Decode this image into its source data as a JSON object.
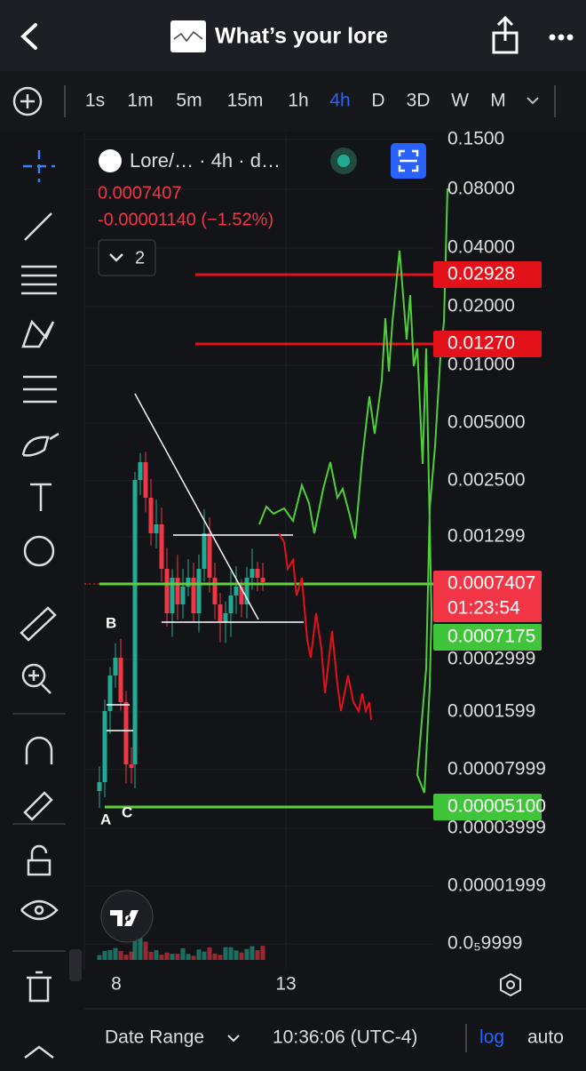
{
  "header": {
    "title": "What’s your lore"
  },
  "timeframes": [
    "1s",
    "1m",
    "5m",
    "15m",
    "1h",
    "4h",
    "D",
    "3D",
    "W",
    "M"
  ],
  "active_timeframe": "4h",
  "legend": {
    "symbol": "Lore/… · 4h · d…",
    "price": "0.0007407",
    "change": "-0.00001140 (−1.52%)",
    "collapsed_count": "2"
  },
  "price_axis": [
    "0.1500",
    "0.08000",
    "0.04000",
    "0.02000",
    "0.01000",
    "0.005000",
    "0.002500",
    "0.001299",
    "0.0002999",
    "0.0001599",
    "0.00007999",
    "0.00003999",
    "0.00001999",
    "0.0₅9999"
  ],
  "price_tags": [
    {
      "label": "0.02928",
      "color": "red"
    },
    {
      "label": "0.01270",
      "color": "red"
    },
    {
      "label": "0.0007407",
      "sub": "01:23:54",
      "color": "red"
    },
    {
      "label": "0.0007175",
      "color": "green"
    },
    {
      "label": "0.00005100",
      "color": "green"
    }
  ],
  "annotations": [
    "A",
    "B",
    "C"
  ],
  "time_axis": [
    "8",
    "13"
  ],
  "footer": {
    "date_range": "Date Range",
    "time": "10:36:06 (UTC-4)",
    "log": "log",
    "auto": "auto"
  }
}
